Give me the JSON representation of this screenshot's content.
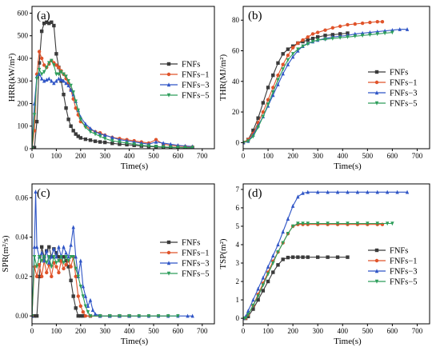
{
  "colors": {
    "series": [
      "#3a3a3a",
      "#e0532a",
      "#2f55c6",
      "#2e9e5b"
    ]
  },
  "chart_data": [
    {
      "type": "line",
      "panel_label": "(a)",
      "xlabel": "Time(s)",
      "ylabel": "HRR(kW/m²)",
      "xlim": [
        0,
        750
      ],
      "ylim": [
        0,
        630
      ],
      "xticks": [
        0,
        100,
        200,
        300,
        400,
        500,
        600,
        700
      ],
      "yticks": [
        0,
        100,
        200,
        300,
        400,
        500,
        600
      ],
      "legend_position": "right",
      "series": [
        {
          "name": "FNFs",
          "x": [
            0,
            10,
            20,
            30,
            40,
            50,
            60,
            70,
            80,
            90,
            100,
            110,
            120,
            130,
            140,
            150,
            160,
            170,
            180,
            190,
            200,
            220,
            240,
            260,
            280,
            300,
            330,
            360,
            390,
            420,
            450,
            480,
            510,
            540,
            570,
            600,
            630,
            660
          ],
          "y": [
            0,
            5,
            120,
            380,
            520,
            555,
            560,
            555,
            560,
            545,
            420,
            360,
            300,
            240,
            180,
            130,
            100,
            80,
            65,
            55,
            48,
            42,
            38,
            33,
            30,
            28,
            24,
            20,
            18,
            15,
            12,
            10,
            8,
            6,
            5,
            5,
            4,
            4
          ]
        },
        {
          "name": "FNFs−1",
          "x": [
            0,
            10,
            20,
            30,
            40,
            50,
            60,
            70,
            80,
            90,
            100,
            110,
            120,
            130,
            140,
            150,
            160,
            170,
            180,
            190,
            200,
            220,
            240,
            260,
            280,
            300,
            330,
            360,
            390,
            420,
            450,
            480,
            510,
            540,
            570,
            600,
            630,
            660
          ],
          "y": [
            0,
            80,
            330,
            430,
            400,
            370,
            360,
            375,
            390,
            380,
            370,
            360,
            345,
            330,
            310,
            290,
            260,
            220,
            180,
            150,
            120,
            100,
            85,
            75,
            70,
            60,
            50,
            45,
            40,
            35,
            30,
            25,
            40,
            20,
            15,
            12,
            10,
            8
          ]
        },
        {
          "name": "FNFs−3",
          "x": [
            0,
            10,
            20,
            30,
            40,
            50,
            60,
            70,
            80,
            90,
            100,
            110,
            120,
            130,
            140,
            150,
            160,
            170,
            180,
            190,
            200,
            220,
            240,
            260,
            280,
            300,
            330,
            360,
            390,
            420,
            450,
            480,
            510,
            540,
            570,
            600,
            630,
            660
          ],
          "y": [
            0,
            200,
            320,
            330,
            310,
            300,
            305,
            310,
            300,
            290,
            300,
            310,
            305,
            300,
            290,
            280,
            260,
            240,
            210,
            170,
            140,
            110,
            90,
            75,
            65,
            60,
            50,
            40,
            35,
            30,
            25,
            20,
            30,
            25,
            20,
            15,
            12,
            10
          ]
        },
        {
          "name": "FNFs−5",
          "x": [
            0,
            10,
            20,
            30,
            40,
            50,
            60,
            70,
            80,
            90,
            100,
            110,
            120,
            130,
            140,
            150,
            160,
            170,
            180,
            190,
            200,
            220,
            240,
            260,
            280,
            300,
            330,
            360,
            390,
            420,
            450,
            480,
            510,
            540,
            570,
            600,
            630,
            660
          ],
          "y": [
            0,
            150,
            310,
            350,
            330,
            340,
            360,
            380,
            390,
            370,
            330,
            330,
            340,
            330,
            320,
            300,
            280,
            250,
            210,
            170,
            130,
            95,
            75,
            65,
            55,
            45,
            35,
            30,
            25,
            20,
            15,
            12,
            10,
            8,
            7,
            6,
            5,
            5
          ]
        }
      ]
    },
    {
      "type": "line",
      "panel_label": "(b)",
      "xlabel": "Time(s)",
      "ylabel": "THR(MJ/m²)",
      "xlim": [
        0,
        750
      ],
      "ylim": [
        -4,
        89
      ],
      "xticks": [
        0,
        100,
        200,
        300,
        400,
        500,
        600,
        700
      ],
      "yticks": [
        0,
        20,
        40,
        60,
        80
      ],
      "legend_position": "right",
      "series": [
        {
          "name": "FNFs",
          "x": [
            0,
            20,
            40,
            60,
            80,
            100,
            120,
            140,
            160,
            180,
            200,
            220,
            240,
            260,
            280,
            300,
            330,
            360,
            390,
            420
          ],
          "y": [
            0,
            2,
            8,
            16,
            26,
            36,
            44,
            52,
            58,
            61,
            63,
            65,
            66,
            67,
            68,
            69,
            70,
            70.5,
            71,
            71.5
          ]
        },
        {
          "name": "FNFs−1",
          "x": [
            0,
            20,
            40,
            60,
            80,
            100,
            120,
            140,
            160,
            180,
            200,
            220,
            240,
            260,
            280,
            300,
            330,
            360,
            390,
            420,
            450,
            480,
            510,
            540,
            560
          ],
          "y": [
            0,
            2,
            6,
            13,
            20,
            28,
            36,
            44,
            51,
            57,
            62,
            65,
            67,
            69,
            71,
            72,
            73.5,
            75,
            76,
            77,
            77.5,
            78,
            78.5,
            79,
            79
          ]
        },
        {
          "name": "FNFs−3",
          "x": [
            0,
            20,
            40,
            60,
            80,
            100,
            120,
            140,
            160,
            180,
            200,
            220,
            240,
            260,
            280,
            300,
            330,
            360,
            390,
            420,
            450,
            480,
            510,
            540,
            570,
            600,
            630,
            660
          ],
          "y": [
            0,
            1,
            5,
            11,
            17,
            24,
            31,
            38,
            45,
            51,
            56,
            60,
            63,
            65,
            66,
            67,
            68,
            69,
            69.5,
            70,
            71,
            71.5,
            72,
            72.5,
            73,
            73.5,
            74,
            74
          ]
        },
        {
          "name": "FNFs−5",
          "x": [
            0,
            20,
            40,
            60,
            80,
            100,
            120,
            140,
            160,
            180,
            200,
            220,
            240,
            260,
            280,
            300,
            330,
            360,
            390,
            420,
            450,
            480,
            510,
            540,
            570,
            600
          ],
          "y": [
            0,
            1,
            4,
            10,
            17,
            25,
            33,
            41,
            48,
            54,
            58,
            61,
            63,
            64.5,
            66,
            67,
            67.5,
            68,
            68.5,
            69,
            69.5,
            70,
            70.5,
            71,
            71.5,
            72
          ]
        }
      ]
    },
    {
      "type": "line",
      "panel_label": "(c)",
      "xlabel": "Time(s)",
      "ylabel": "SPR(m²/s)",
      "xlim": [
        0,
        750
      ],
      "ylim": [
        -0.004,
        0.067
      ],
      "xticks": [
        0,
        100,
        200,
        300,
        400,
        500,
        600,
        700
      ],
      "yticks": [
        0.0,
        0.02,
        0.04,
        0.06
      ],
      "ytick_labels": [
        "0.00",
        "0.02",
        "0.04",
        "0.06"
      ],
      "legend_position": "right",
      "series": [
        {
          "name": "FNFs",
          "x": [
            0,
            10,
            20,
            30,
            40,
            50,
            60,
            70,
            80,
            90,
            100,
            110,
            120,
            130,
            140,
            150,
            160,
            170,
            180,
            190,
            200,
            210,
            240,
            280,
            320,
            360,
            400
          ],
          "y": [
            0,
            0,
            0,
            0.02,
            0.035,
            0.03,
            0.033,
            0.035,
            0.03,
            0.034,
            0.032,
            0.03,
            0.028,
            0.03,
            0.028,
            0.025,
            0.018,
            0.01,
            0.004,
            0,
            0,
            0,
            0,
            0,
            0,
            0,
            0
          ]
        },
        {
          "name": "FNFs−1",
          "x": [
            0,
            10,
            20,
            30,
            40,
            50,
            60,
            70,
            80,
            90,
            100,
            110,
            120,
            130,
            140,
            150,
            160,
            170,
            180,
            190,
            200,
            210,
            220,
            240,
            280,
            320,
            360,
            400,
            440,
            480,
            520,
            560
          ],
          "y": [
            0,
            0.025,
            0.02,
            0.026,
            0.02,
            0.028,
            0.022,
            0.026,
            0.02,
            0.027,
            0.025,
            0.022,
            0.028,
            0.024,
            0.026,
            0.028,
            0.025,
            0.03,
            0.02,
            0.01,
            0.005,
            0.002,
            0,
            0,
            0,
            0,
            0,
            0,
            0,
            0,
            0,
            0
          ]
        },
        {
          "name": "FNFs−3",
          "x": [
            0,
            10,
            15,
            20,
            30,
            40,
            50,
            60,
            70,
            80,
            90,
            100,
            110,
            120,
            130,
            140,
            150,
            160,
            170,
            180,
            190,
            200,
            210,
            220,
            230,
            240,
            250,
            260,
            280,
            320,
            360,
            400,
            440,
            480,
            520,
            560,
            600,
            640,
            660
          ],
          "y": [
            0,
            0.035,
            0.063,
            0.035,
            0.03,
            0.032,
            0.028,
            0.033,
            0.027,
            0.03,
            0.034,
            0.03,
            0.035,
            0.03,
            0.035,
            0.032,
            0.03,
            0.036,
            0.045,
            0.03,
            0.02,
            0.028,
            0.015,
            0.01,
            0.005,
            0.008,
            0.003,
            0.001,
            0,
            0,
            0,
            0,
            0,
            0,
            0,
            0,
            0,
            0,
            0
          ]
        },
        {
          "name": "FNFs−5",
          "x": [
            0,
            10,
            20,
            30,
            40,
            50,
            60,
            70,
            80,
            90,
            100,
            110,
            120,
            130,
            140,
            150,
            160,
            170,
            180,
            190,
            200,
            210,
            220,
            230,
            240,
            280,
            320,
            360,
            400,
            440,
            480,
            520,
            560,
            600
          ],
          "y": [
            0,
            0.03,
            0.025,
            0.03,
            0.028,
            0.03,
            0.027,
            0.03,
            0.025,
            0.03,
            0.027,
            0.028,
            0.03,
            0.027,
            0.03,
            0.028,
            0.03,
            0.03,
            0.024,
            0.02,
            0.015,
            0.01,
            0.005,
            0.002,
            0,
            0,
            0,
            0,
            0,
            0,
            0,
            0,
            0,
            0
          ]
        }
      ]
    },
    {
      "type": "line",
      "panel_label": "(d)",
      "xlabel": "Time(s)",
      "ylabel": "TSP(m²)",
      "xlim": [
        0,
        750
      ],
      "ylim": [
        -0.3,
        7.3
      ],
      "xticks": [
        0,
        100,
        200,
        300,
        400,
        500,
        600,
        700
      ],
      "yticks": [
        0,
        1,
        2,
        3,
        4,
        5,
        6,
        7
      ],
      "legend_position": "right",
      "series": [
        {
          "name": "FNFs",
          "x": [
            0,
            10,
            20,
            40,
            60,
            80,
            100,
            120,
            140,
            160,
            180,
            200,
            220,
            240,
            260,
            300,
            340,
            380,
            420
          ],
          "y": [
            0,
            0,
            0.1,
            0.5,
            1.0,
            1.5,
            2.0,
            2.5,
            2.9,
            3.2,
            3.3,
            3.32,
            3.32,
            3.32,
            3.32,
            3.32,
            3.32,
            3.32,
            3.32
          ]
        },
        {
          "name": "FNFs−1",
          "x": [
            0,
            10,
            20,
            40,
            60,
            80,
            100,
            120,
            140,
            160,
            180,
            200,
            220,
            240,
            260,
            300,
            340,
            380,
            420,
            460,
            500,
            540,
            560
          ],
          "y": [
            0,
            0,
            0.2,
            0.7,
            1.3,
            1.9,
            2.5,
            3.1,
            3.6,
            4.1,
            4.6,
            5.0,
            5.1,
            5.1,
            5.1,
            5.1,
            5.1,
            5.1,
            5.1,
            5.1,
            5.1,
            5.1,
            5.1
          ]
        },
        {
          "name": "FNFs−3",
          "x": [
            0,
            10,
            20,
            40,
            60,
            80,
            100,
            120,
            140,
            160,
            180,
            200,
            220,
            240,
            260,
            300,
            340,
            380,
            420,
            460,
            500,
            540,
            580,
            620,
            660
          ],
          "y": [
            0,
            0.1,
            0.4,
            1.0,
            1.6,
            2.2,
            2.8,
            3.4,
            4.0,
            4.7,
            5.4,
            6.1,
            6.6,
            6.8,
            6.85,
            6.85,
            6.85,
            6.85,
            6.85,
            6.85,
            6.85,
            6.85,
            6.85,
            6.85,
            6.85
          ]
        },
        {
          "name": "FNFs−5",
          "x": [
            0,
            10,
            20,
            40,
            60,
            80,
            100,
            120,
            140,
            160,
            180,
            200,
            220,
            240,
            260,
            300,
            340,
            380,
            420,
            460,
            500,
            540,
            580,
            600
          ],
          "y": [
            0,
            0,
            0.2,
            0.7,
            1.2,
            1.8,
            2.4,
            3.0,
            3.6,
            4.1,
            4.6,
            5.0,
            5.15,
            5.15,
            5.15,
            5.15,
            5.15,
            5.15,
            5.15,
            5.15,
            5.15,
            5.15,
            5.15,
            5.15
          ]
        }
      ]
    }
  ]
}
